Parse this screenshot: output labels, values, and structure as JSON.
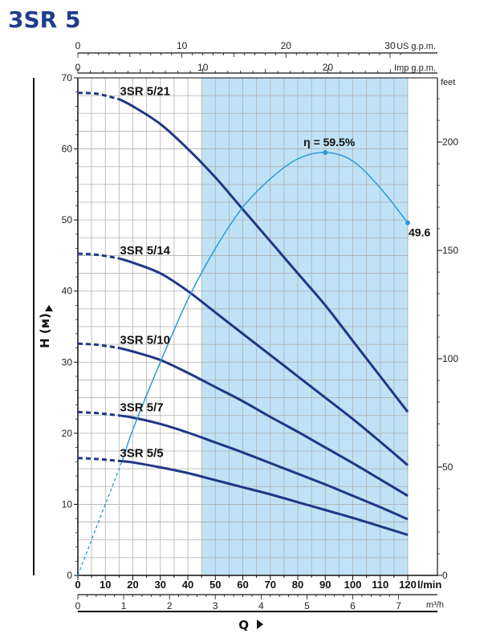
{
  "page_title": "3SR 5",
  "colors": {
    "title": "#1d3d8a",
    "curve": "#1f3786",
    "efficiency": "#2a9bd6",
    "band": "#bfe2f6",
    "grid": "#b0b0b0",
    "axis": "#111111"
  },
  "chart_data": {
    "type": "line",
    "x_unit": "l/min",
    "y_unit_left": "H (м)",
    "y_unit_right": "feet",
    "xlim": [
      0,
      120
    ],
    "ylim": [
      0,
      70
    ],
    "x_ticks": [
      0,
      10,
      20,
      30,
      40,
      50,
      60,
      70,
      80,
      90,
      100,
      110,
      120
    ],
    "y_ticks": [
      0,
      10,
      20,
      30,
      40,
      50,
      60,
      70
    ],
    "feet_ticks": [
      0,
      50,
      100,
      150,
      200
    ],
    "us_gpm_ticks": [
      0,
      10,
      20,
      30
    ],
    "us_gpm_unit": "US g.p.m.",
    "imp_gpm_ticks": [
      0,
      10,
      20
    ],
    "imp_gpm_unit": "Imp g.p.m.",
    "m3h_ticks": [
      0,
      1,
      2,
      3,
      4,
      5,
      6,
      7
    ],
    "m3h_unit": "m³/h",
    "xlabel": "Q",
    "ylabel": "H (м)",
    "recommended_range": [
      45,
      120
    ],
    "series": [
      {
        "name": "3SR 5/21",
        "dashed_x": [
          0,
          15
        ],
        "x": [
          15,
          20,
          30,
          40,
          50,
          60,
          70,
          80,
          90,
          100,
          110,
          120
        ],
        "y": [
          67,
          66,
          63.5,
          60,
          56,
          51.5,
          47,
          42.5,
          38,
          33,
          28,
          23
        ]
      },
      {
        "name": "3SR 5/14",
        "dashed_x": [
          0,
          15
        ],
        "x": [
          15,
          20,
          30,
          40,
          50,
          60,
          70,
          80,
          90,
          100,
          110,
          120
        ],
        "y": [
          44.6,
          44,
          42.5,
          40,
          37,
          34,
          31,
          28,
          25,
          22,
          18.8,
          15.5
        ]
      },
      {
        "name": "3SR 5/10",
        "dashed_x": [
          0,
          15
        ],
        "x": [
          15,
          20,
          30,
          40,
          50,
          60,
          70,
          80,
          90,
          100,
          110,
          120
        ],
        "y": [
          32,
          31.5,
          30.3,
          28.5,
          26.5,
          24.5,
          22.3,
          20.2,
          18,
          15.8,
          13.5,
          11.2
        ]
      },
      {
        "name": "3SR 5/7",
        "dashed_x": [
          0,
          15
        ],
        "x": [
          15,
          20,
          30,
          40,
          50,
          60,
          70,
          80,
          90,
          100,
          110,
          120
        ],
        "y": [
          22.5,
          22.2,
          21.3,
          20.1,
          18.7,
          17.3,
          15.8,
          14.3,
          12.8,
          11.2,
          9.6,
          7.9
        ]
      },
      {
        "name": "3SR 5/5",
        "dashed_x": [
          0,
          15
        ],
        "x": [
          15,
          20,
          30,
          40,
          50,
          60,
          70,
          80,
          90,
          100,
          110,
          120
        ],
        "y": [
          16.1,
          15.9,
          15.2,
          14.4,
          13.4,
          12.4,
          11.4,
          10.3,
          9.2,
          8.1,
          6.9,
          5.7
        ]
      }
    ],
    "efficiency": {
      "label": "η = 59.5%",
      "end_label": "49.6",
      "peak": [
        90,
        59.5
      ],
      "end": [
        120,
        49.6
      ],
      "dashed_x": [
        0,
        17
      ],
      "x": [
        17,
        20,
        30,
        40,
        50,
        60,
        70,
        80,
        90,
        100,
        110,
        120
      ],
      "y": [
        17,
        20.5,
        30,
        38.8,
        46,
        51.8,
        55.8,
        58.6,
        59.5,
        58.3,
        54.5,
        49.6
      ]
    }
  }
}
